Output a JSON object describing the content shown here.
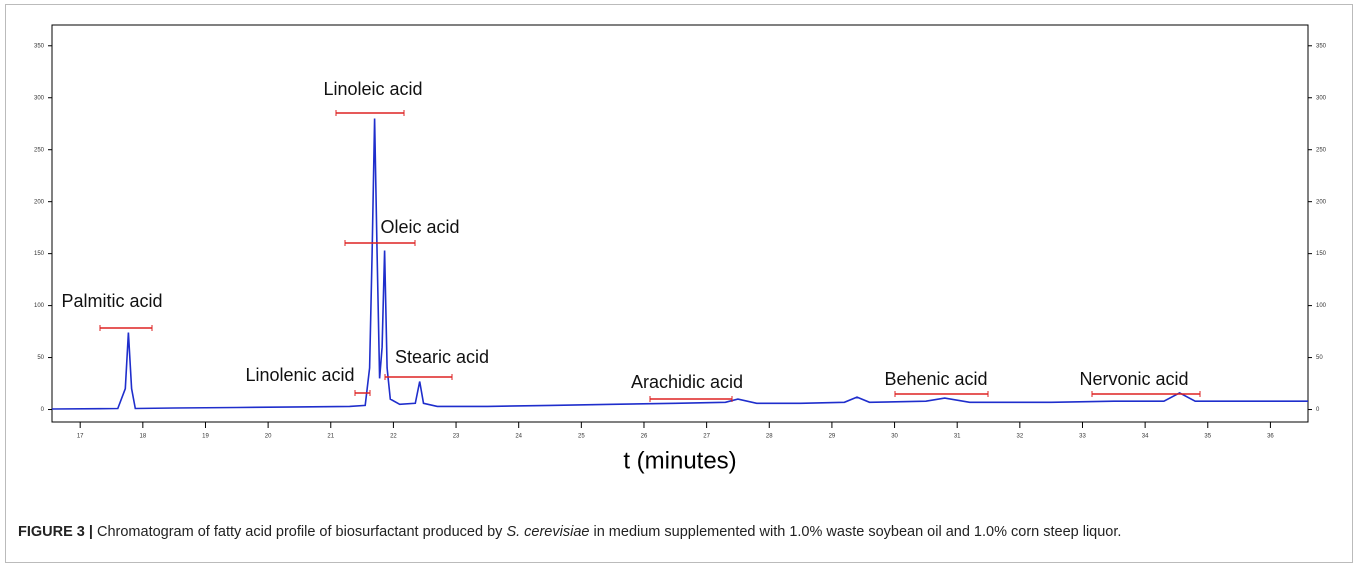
{
  "chart_data": {
    "type": "line",
    "xlabel": "t (minutes)",
    "x": [
      16.55,
      17.3,
      17.6,
      17.72,
      17.77,
      17.82,
      17.88,
      18.5,
      19.5,
      20.5,
      21.3,
      21.55,
      21.62,
      21.66,
      21.7,
      21.74,
      21.78,
      21.82,
      21.86,
      21.9,
      21.95,
      22.1,
      22.35,
      22.42,
      22.48,
      22.7,
      23.5,
      24.5,
      25.5,
      26.5,
      27.3,
      27.5,
      27.8,
      28.5,
      29.2,
      29.4,
      29.6,
      30.5,
      30.8,
      31.2,
      32.5,
      33.5,
      34.3,
      34.55,
      34.8,
      35.3,
      36.6
    ],
    "series": [
      {
        "color": "#1f2ecc",
        "values": [
          0.5,
          0.8,
          1,
          20,
          74,
          20,
          1,
          1.5,
          2,
          2.5,
          3,
          4,
          40,
          150,
          280,
          150,
          30,
          60,
          153,
          40,
          10,
          5,
          6,
          27,
          6,
          3,
          3,
          4,
          5,
          6,
          7,
          10,
          6,
          6,
          7,
          12,
          7,
          8,
          11,
          7,
          7,
          8,
          8,
          16,
          8,
          8,
          8
        ]
      }
    ],
    "xlim": [
      16.55,
      36.6
    ],
    "ylim": [
      -12,
      370
    ],
    "xticks": [
      17,
      18,
      19,
      20,
      21,
      22,
      23,
      24,
      25,
      26,
      27,
      28,
      29,
      30,
      31,
      32,
      33,
      34,
      35,
      36
    ],
    "yticks": [
      0,
      50,
      100,
      150,
      200,
      250,
      300,
      350
    ],
    "annotations": [
      "Linoleic acid",
      "Oleic acid",
      "Palmitic acid",
      "Linolenic acid",
      "Stearic acid",
      "Arachidic acid",
      "Behenic acid",
      "Nervonic acid"
    ]
  },
  "caption": {
    "label": "FIGURE 3 |",
    "text_before": "Chromatogram of fatty acid profile of biosurfactant produced by",
    "italic": "S. cerevisiae",
    "text_after": "in medium supplemented with 1.0% waste soybean oil and 1.0% corn steep liquor."
  }
}
